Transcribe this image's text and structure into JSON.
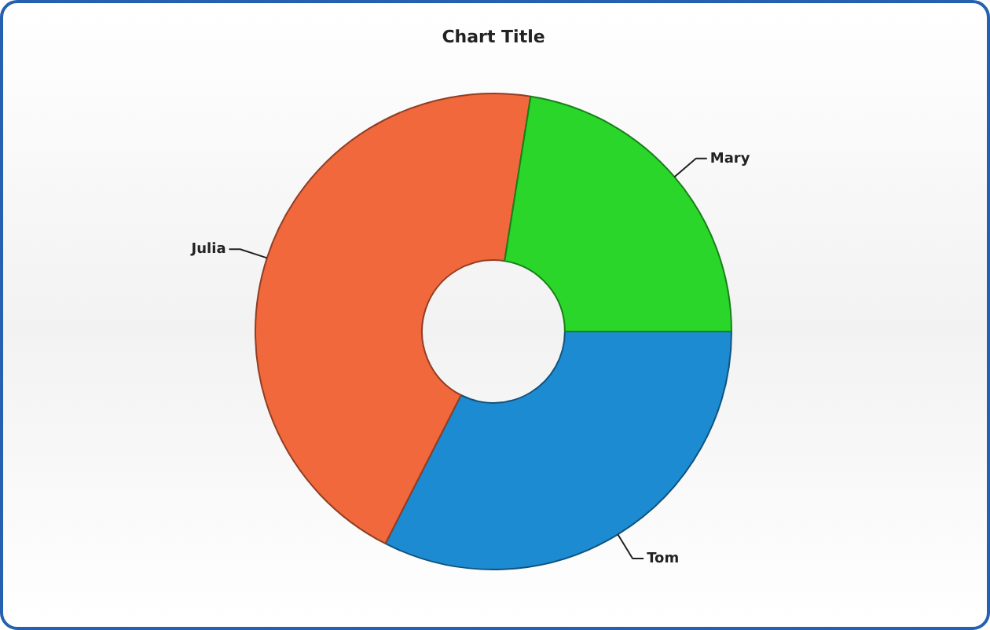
{
  "chart_data": {
    "type": "donut",
    "title": "Chart Title",
    "categories": [
      "Tom",
      "Julia",
      "Mary"
    ],
    "values": [
      32.5,
      45,
      22.5
    ],
    "colors": [
      "#1d8bd1",
      "#f1683c",
      "#2ad62a"
    ]
  }
}
